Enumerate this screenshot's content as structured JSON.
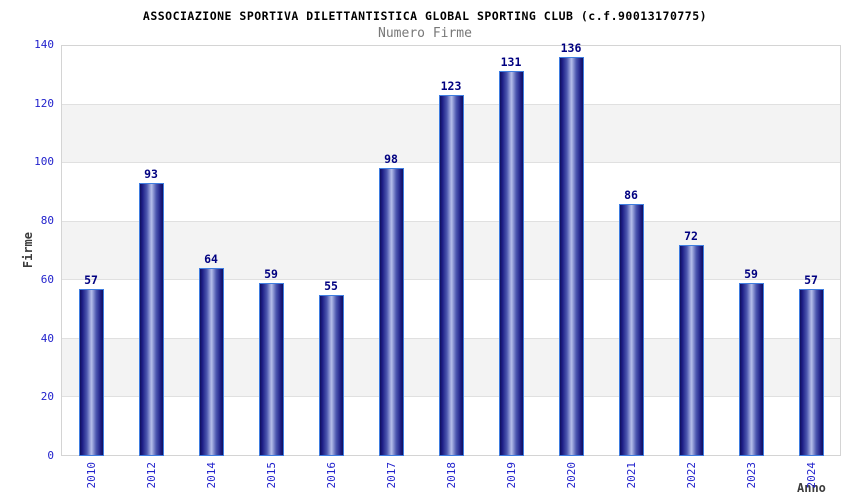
{
  "chart_data": {
    "type": "bar",
    "title": "ASSOCIAZIONE SPORTIVA DILETTANTISTICA GLOBAL SPORTING CLUB (c.f.90013170775)",
    "subtitle": "Numero Firme",
    "xlabel": "Anno",
    "ylabel": "Firme",
    "categories": [
      "2010",
      "2012",
      "2014",
      "2015",
      "2016",
      "2017",
      "2018",
      "2019",
      "2020",
      "2021",
      "2022",
      "2023",
      "2024"
    ],
    "values": [
      57,
      93,
      64,
      59,
      55,
      98,
      123,
      131,
      136,
      86,
      72,
      59,
      57
    ],
    "ylim": [
      0,
      140
    ],
    "yticks": [
      0,
      20,
      40,
      60,
      80,
      100,
      120,
      140
    ],
    "grid": "horizontal gridlines with alternating gray bands",
    "legend": null
  },
  "colors": {
    "bar_dark": "#10105e",
    "bar_light": "#b7c0ea",
    "bar_border": "#3f7de0",
    "tick_label": "#2222cc",
    "value_label": "#000080",
    "title_text": "#000000",
    "subtitle_text": "#787878",
    "axis_title_text": "#3c3c3c",
    "band_gray": "#f3f3f3",
    "gridline": "#e0e0e0",
    "plot_border": "#d4d4d4",
    "background": "#ffffff"
  }
}
